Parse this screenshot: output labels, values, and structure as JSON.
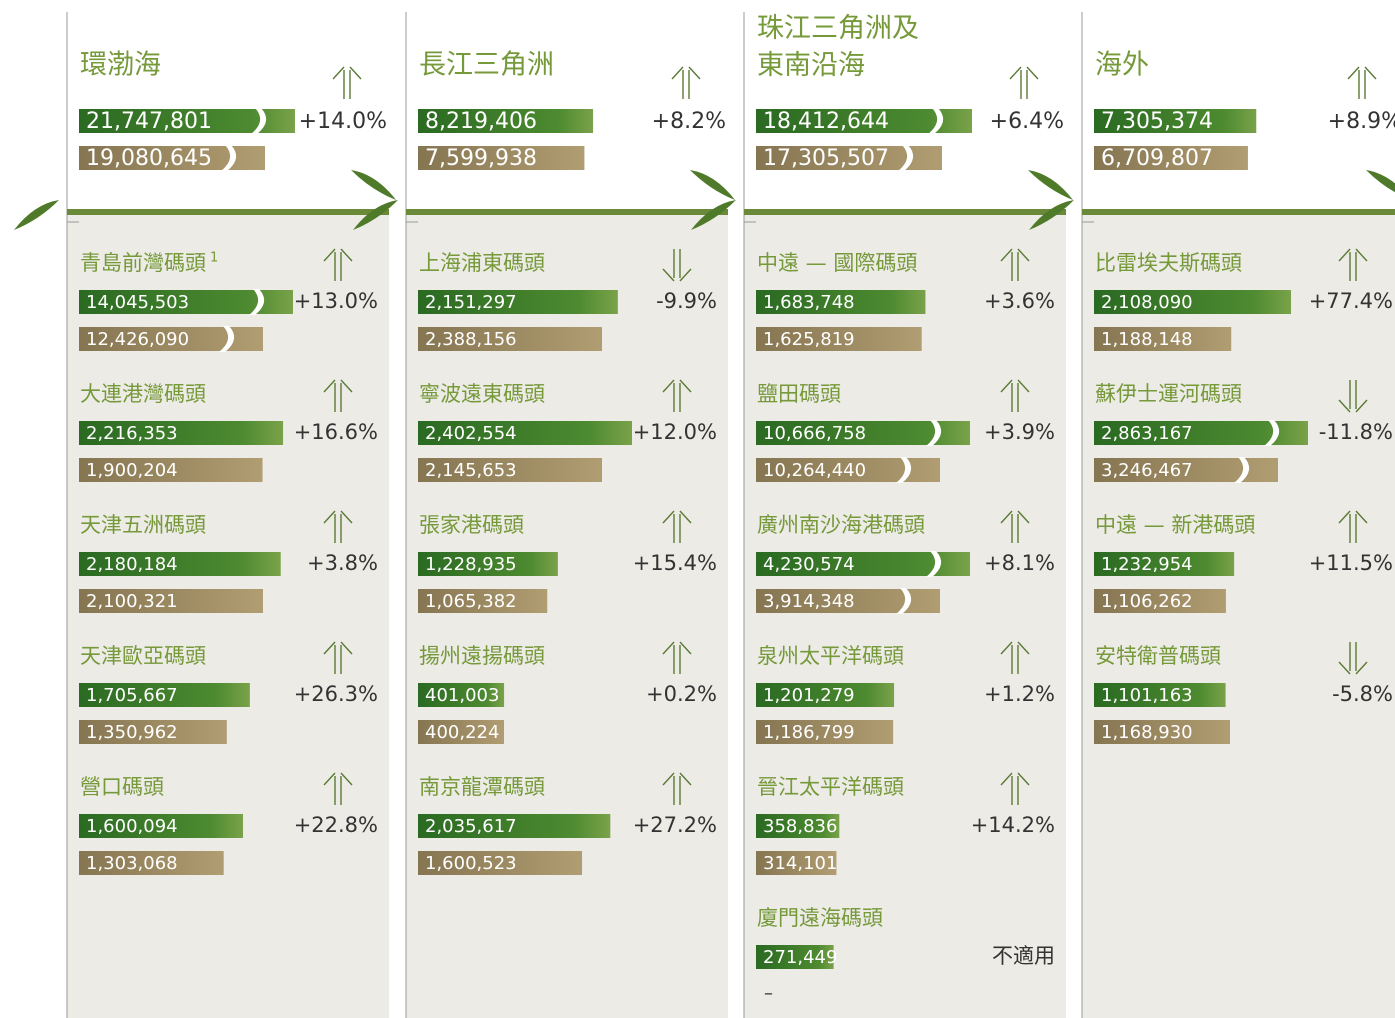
{
  "regions": [
    {
      "name": "環渤海",
      "current": {
        "value": 21747801,
        "label": "21,747,801"
      },
      "previous": {
        "value": 19080645,
        "label": "19,080,645"
      },
      "change": "+14.0%",
      "terminals": [
        {
          "name": "青島前灣碼頭",
          "note": "1",
          "current": {
            "value": 14045503,
            "label": "14,045,503"
          },
          "previous": {
            "value": 12426090,
            "label": "12,426,090"
          },
          "change": "+13.0%"
        },
        {
          "name": "大連港灣碼頭",
          "current": {
            "value": 2216353,
            "label": "2,216,353"
          },
          "previous": {
            "value": 1900204,
            "label": "1,900,204"
          },
          "change": "+16.6%"
        },
        {
          "name": "天津五洲碼頭",
          "current": {
            "value": 2180184,
            "label": "2,180,184"
          },
          "previous": {
            "value": 2100321,
            "label": "2,100,321"
          },
          "change": "+3.8%"
        },
        {
          "name": "天津歐亞碼頭",
          "current": {
            "value": 1705667,
            "label": "1,705,667"
          },
          "previous": {
            "value": 1350962,
            "label": "1,350,962"
          },
          "change": "+26.3%"
        },
        {
          "name": "營口碼頭",
          "current": {
            "value": 1600094,
            "label": "1,600,094"
          },
          "previous": {
            "value": 1303068,
            "label": "1,303,068"
          },
          "change": "+22.8%"
        }
      ]
    },
    {
      "name": "長江三角洲",
      "current": {
        "value": 8219406,
        "label": "8,219,406"
      },
      "previous": {
        "value": 7599938,
        "label": "7,599,938"
      },
      "change": "+8.2%",
      "terminals": [
        {
          "name": "上海浦東碼頭",
          "current": {
            "value": 2151297,
            "label": "2,151,297"
          },
          "previous": {
            "value": 2388156,
            "label": "2,388,156"
          },
          "change": "-9.9%"
        },
        {
          "name": "寧波遠東碼頭",
          "current": {
            "value": 2402554,
            "label": "2,402,554"
          },
          "previous": {
            "value": 2145653,
            "label": "2,145,653"
          },
          "change": "+12.0%"
        },
        {
          "name": "張家港碼頭",
          "current": {
            "value": 1228935,
            "label": "1,228,935"
          },
          "previous": {
            "value": 1065382,
            "label": "1,065,382"
          },
          "change": "+15.4%"
        },
        {
          "name": "揚州遠揚碼頭",
          "current": {
            "value": 401003,
            "label": "401,003"
          },
          "previous": {
            "value": 400224,
            "label": "400,224"
          },
          "change": "+0.2%"
        },
        {
          "name": "南京龍潭碼頭",
          "current": {
            "value": 2035617,
            "label": "2,035,617"
          },
          "previous": {
            "value": 1600523,
            "label": "1,600,523"
          },
          "change": "+27.2%"
        }
      ]
    },
    {
      "name": "珠江三角洲及\n東南沿海",
      "current": {
        "value": 18412644,
        "label": "18,412,644"
      },
      "previous": {
        "value": 17305507,
        "label": "17,305,507"
      },
      "change": "+6.4%",
      "terminals": [
        {
          "name": "中遠 — 國際碼頭",
          "current": {
            "value": 1683748,
            "label": "1,683,748"
          },
          "previous": {
            "value": 1625819,
            "label": "1,625,819"
          },
          "change": "+3.6%"
        },
        {
          "name": "鹽田碼頭",
          "current": {
            "value": 10666758,
            "label": "10,666,758"
          },
          "previous": {
            "value": 10264440,
            "label": "10,264,440"
          },
          "change": "+3.9%"
        },
        {
          "name": "廣州南沙海港碼頭",
          "current": {
            "value": 4230574,
            "label": "4,230,574"
          },
          "previous": {
            "value": 3914348,
            "label": "3,914,348"
          },
          "change": "+8.1%"
        },
        {
          "name": "泉州太平洋碼頭",
          "current": {
            "value": 1201279,
            "label": "1,201,279"
          },
          "previous": {
            "value": 1186799,
            "label": "1,186,799"
          },
          "change": "+1.2%"
        },
        {
          "name": "晉江太平洋碼頭",
          "current": {
            "value": 358836,
            "label": "358,836"
          },
          "previous": {
            "value": 314101,
            "label": "314,101"
          },
          "change": "+14.2%"
        },
        {
          "name": "廈門遠海碼頭",
          "current": {
            "value": 271449,
            "label": "271,449"
          },
          "previous": {
            "value": null,
            "label": "–"
          },
          "change": "不適用"
        }
      ]
    },
    {
      "name": "海外",
      "current": {
        "value": 7305374,
        "label": "7,305,374"
      },
      "previous": {
        "value": 6709807,
        "label": "6,709,807"
      },
      "change": "+8.9%",
      "terminals": [
        {
          "name": "比雷埃夫斯碼頭",
          "current": {
            "value": 2108090,
            "label": "2,108,090"
          },
          "previous": {
            "value": 1188148,
            "label": "1,188,148"
          },
          "change": "+77.4%"
        },
        {
          "name": "蘇伊士運河碼頭",
          "current": {
            "value": 2863167,
            "label": "2,863,167"
          },
          "previous": {
            "value": 3246467,
            "label": "3,246,467"
          },
          "change": "-11.8%"
        },
        {
          "name": "中遠 — 新港碼頭",
          "current": {
            "value": 1232954,
            "label": "1,232,954"
          },
          "previous": {
            "value": 1106262,
            "label": "1,106,262"
          },
          "change": "+11.5%"
        },
        {
          "name": "安特衛普碼頭",
          "current": {
            "value": 1101163,
            "label": "1,101,163"
          },
          "previous": {
            "value": 1168930,
            "label": "1,168,930"
          },
          "change": "-5.8%"
        }
      ]
    }
  ]
}
